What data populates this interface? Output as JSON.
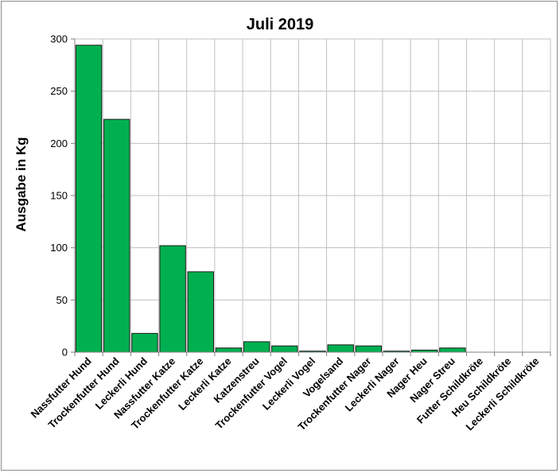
{
  "chart_data": {
    "type": "bar",
    "title": "Juli 2019",
    "ylabel": "Ausgabe in Kg",
    "xlabel": "",
    "ylim": [
      0,
      300
    ],
    "yticks": [
      0,
      50,
      100,
      150,
      200,
      250,
      300
    ],
    "grid": true,
    "legend": "none",
    "colors": {
      "bar": "#00b050",
      "bar_edge": "#1a1a1a",
      "grid": "#c0c0c0",
      "axis": "#7f7f7f"
    },
    "categories": [
      "Nassfutter Hund",
      "Trockenfutter Hund",
      "Leckerli Hund",
      "Nassfutter Katze",
      "Trockenfutter Katze",
      "Leckerli Katze",
      "Katzenstreu",
      "Trockenfutter Vogel",
      "Leckerli Vogel",
      "Vogelsand",
      "Trockenfutter Nager",
      "Leckerli Nager",
      "Nager Heu",
      "Nager Streu",
      "Futter Schildkröte",
      "Heu Schildkröte",
      "Leckerli Schildkröte"
    ],
    "values": [
      294,
      223,
      18,
      102,
      77,
      4,
      10,
      6,
      1,
      7,
      6,
      1,
      2,
      4,
      0,
      0,
      0
    ]
  }
}
